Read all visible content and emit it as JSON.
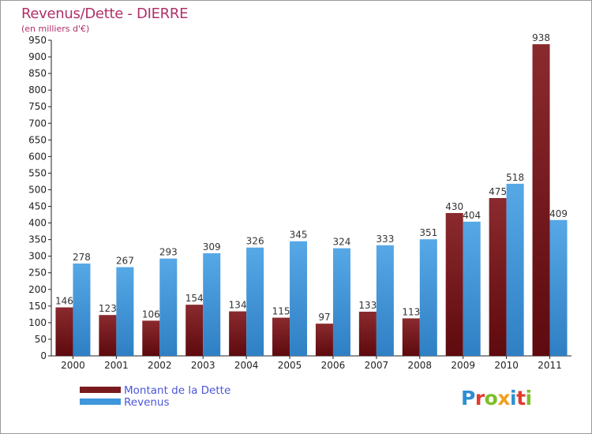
{
  "chart_data": {
    "type": "bar",
    "title": "Revenus/Dette - DIERRE",
    "subtitle": "(en milliers d'€)",
    "categories": [
      "2000",
      "2001",
      "2002",
      "2003",
      "2004",
      "2005",
      "2006",
      "2007",
      "2008",
      "2009",
      "2010",
      "2011"
    ],
    "series": [
      {
        "name": "Montant de la Dette",
        "color": "#7a1a1e",
        "values": [
          146,
          123,
          106,
          154,
          134,
          115,
          97,
          133,
          113,
          430,
          475,
          938
        ]
      },
      {
        "name": "Revenus",
        "color": "#3f96dc",
        "values": [
          278,
          267,
          293,
          309,
          326,
          345,
          324,
          333,
          351,
          404,
          518,
          409
        ]
      }
    ],
    "ylim": [
      0,
      950
    ],
    "ytick_step": 50,
    "grid": false,
    "legend_position": "bottom-left"
  },
  "logo": {
    "letters": [
      {
        "ch": "P",
        "color": "#2d8fd1"
      },
      {
        "ch": "r",
        "color": "#e23b2e"
      },
      {
        "ch": "o",
        "color": "#7cbf2a"
      },
      {
        "ch": "x",
        "color": "#f29e1e"
      },
      {
        "ch": "i",
        "color": "#2d8fd1"
      },
      {
        "ch": "t",
        "color": "#e23b2e"
      },
      {
        "ch": "i",
        "color": "#7cbf2a"
      }
    ]
  }
}
